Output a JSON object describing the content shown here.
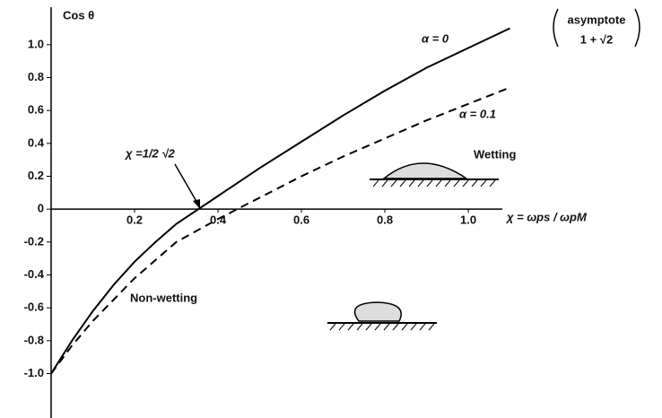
{
  "chart_data": {
    "type": "line",
    "y_label": "Cos θ",
    "x_label": "χ = ωps / ωpM",
    "annotations": [
      "χ =1/2 √2",
      "Wetting",
      "Non-wetting",
      "asymptote",
      "1 + √2"
    ],
    "x": [
      0,
      0.05,
      0.1,
      0.15,
      0.2,
      0.25,
      0.3,
      0.4,
      0.5,
      0.6,
      0.7,
      0.8,
      0.9,
      1.0,
      1.1
    ],
    "series": [
      {
        "name": "α = 0",
        "color": "#000000",
        "dash": false,
        "values": [
          -1,
          -0.8,
          -0.62,
          -0.46,
          -0.32,
          -0.2,
          -0.09,
          0.08,
          0.25,
          0.41,
          0.57,
          0.72,
          0.86,
          0.98,
          1.1
        ]
      },
      {
        "name": "α = 0.1",
        "color": "#000000",
        "dash": true,
        "values": [
          -1,
          -0.83,
          -0.68,
          -0.55,
          -0.42,
          -0.31,
          -0.2,
          -0.06,
          0.07,
          0.2,
          0.32,
          0.43,
          0.54,
          0.64,
          0.74
        ]
      }
    ],
    "xlim": [
      0,
      1.46
    ],
    "ylim": [
      -1.27,
      1.19
    ],
    "xticks": [
      0.2,
      0.4,
      0.6,
      0.8,
      {
        "value": 1,
        "label": "1.0"
      }
    ],
    "yticks": [
      {
        "value": 1,
        "label": "1.0"
      },
      0.8,
      0.6,
      0.4,
      0.2,
      0,
      -0.2,
      -0.4,
      -0.6,
      -0.8,
      {
        "value": -1,
        "label": "-1.0"
      }
    ],
    "grid": false
  }
}
